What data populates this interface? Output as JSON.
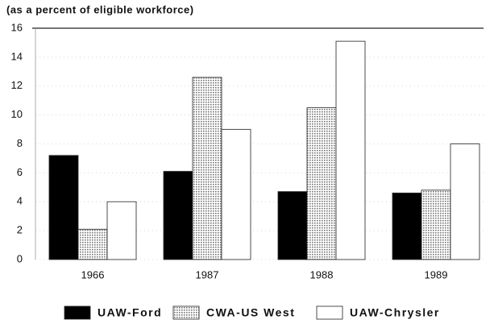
{
  "chart_data": {
    "type": "bar",
    "title": "(as a percent of eligible workforce)",
    "categories": [
      "1966",
      "1987",
      "1988",
      "1989"
    ],
    "series": [
      {
        "name": "UAW-Ford",
        "color": "#000000",
        "values": [
          7.2,
          6.1,
          4.7,
          4.6
        ]
      },
      {
        "name": "CWA-US West",
        "color": "#777777",
        "values": [
          2.1,
          12.6,
          10.5,
          4.8
        ]
      },
      {
        "name": "UAW-Chrysler",
        "color": "#ffffff",
        "values": [
          4.0,
          9.0,
          15.1,
          8.0
        ]
      }
    ],
    "ylim": [
      0,
      16
    ],
    "yticks": [
      0,
      2,
      4,
      6,
      8,
      10,
      12,
      14,
      16
    ],
    "grid": true
  }
}
